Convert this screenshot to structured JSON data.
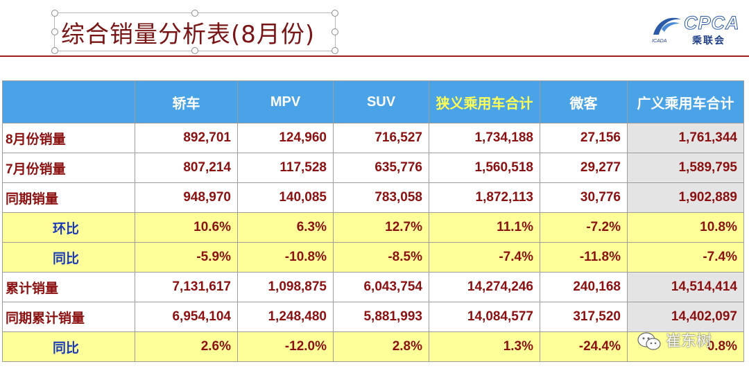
{
  "title": "综合销量分析表(8月份)",
  "logo": {
    "text": "CPCA",
    "cn": "乘联会",
    "en": "ICADA",
    "colors": {
      "brand": "#2a5aa8"
    }
  },
  "colors": {
    "header_bg": "#4aa3e6",
    "highlight_header": "#ffff55",
    "value_text": "#8b1010",
    "pct_row_bg": "#ffff99",
    "pct_label": "#1a3ab8",
    "total_col_bg": "#e4e4e4",
    "title_rule": "#a02020"
  },
  "table": {
    "headers": [
      "轿车",
      "MPV",
      "SUV",
      "狭义乘用车合计",
      "微客",
      "广义乘用车合计"
    ],
    "rows": [
      {
        "label": "8月份销量",
        "values": [
          "892,701",
          "124,960",
          "716,527",
          "1,734,188",
          "27,156",
          "1,761,344"
        ]
      },
      {
        "label": "7月份销量",
        "values": [
          "807,214",
          "117,528",
          "635,776",
          "1,560,518",
          "29,277",
          "1,589,795"
        ]
      },
      {
        "label": "同期销量",
        "values": [
          "948,970",
          "140,085",
          "783,058",
          "1,872,113",
          "30,776",
          "1,902,889"
        ]
      },
      {
        "label": "环比",
        "values": [
          "10.6%",
          "6.3%",
          "12.7%",
          "11.1%",
          "-7.2%",
          "10.8%"
        ]
      },
      {
        "label": "同比",
        "values": [
          "-5.9%",
          "-10.8%",
          "-8.5%",
          "-7.4%",
          "-11.8%",
          "-7.4%"
        ]
      },
      {
        "label": "累计销量",
        "values": [
          "7,131,617",
          "1,098,875",
          "6,043,754",
          "14,274,246",
          "240,168",
          "14,514,414"
        ]
      },
      {
        "label": "同期累计销量",
        "values": [
          "6,954,104",
          "1,248,480",
          "5,881,993",
          "14,084,577",
          "317,520",
          "14,402,097"
        ]
      },
      {
        "label": "同比",
        "values": [
          "2.6%",
          "-12.0%",
          "2.8%",
          "1.3%",
          "-24.4%",
          "0.8%"
        ]
      }
    ]
  },
  "watermark": {
    "text": "崔东树",
    "icon": "wechat-icon"
  }
}
